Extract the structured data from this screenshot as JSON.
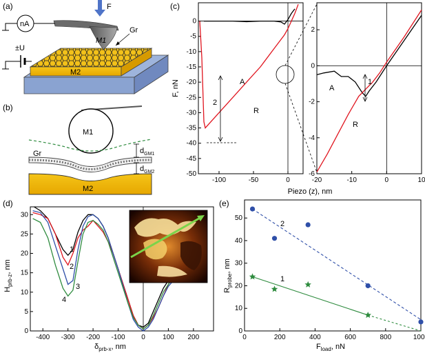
{
  "panels": {
    "a": {
      "label": "(a)",
      "force_label": "F",
      "ammeter_label": "nA",
      "tip_label": "M1",
      "graphene_label": "Gr",
      "voltage_label": "±U",
      "substrate_label": "M2"
    },
    "b": {
      "label": "(b)",
      "sphere_label": "M1",
      "graphene_label": "Gr",
      "bottom_label": "M2",
      "d1_main": "d",
      "d1_sub": "GM1",
      "d2_main": "d",
      "d2_sub": "GM2"
    },
    "c": {
      "label": "(c)",
      "ylabel": "F, nN",
      "xlabel": "Piezo (z), nm",
      "left_xticks": [
        "-100",
        "-50",
        "0"
      ],
      "left_yticks": [
        "0",
        "-5",
        "-10",
        "-15",
        "-20",
        "-25",
        "-30",
        "-35",
        "-40",
        "-45",
        "-50"
      ],
      "right_xticks": [
        "-20",
        "-10",
        "0",
        "10"
      ],
      "right_yticks": [
        "2",
        "0",
        "-2",
        "-4",
        "-6"
      ],
      "curve_A": "A",
      "curve_R": "R",
      "left_marker": "2",
      "right_marker": "1",
      "colors": {
        "approach": "#000000",
        "retract": "#e0141e"
      }
    },
    "d": {
      "label": "(d)",
      "ylabel_main": "H",
      "ylabel_sub": "prb-z",
      "ylabel_unit": ", nm",
      "xlabel_main": "δ",
      "xlabel_sub": "prb-x",
      "xlabel_unit": ", nm",
      "xticks": [
        "-400",
        "-300",
        "-200",
        "-100",
        "0",
        "100",
        "200"
      ],
      "yticks": [
        "30",
        "25",
        "20",
        "15",
        "10",
        "5",
        "0"
      ],
      "curve_labels": [
        "1",
        "2",
        "3",
        "4"
      ],
      "colors": [
        "#000000",
        "#e0141e",
        "#2f4fa8",
        "#2e8b3e"
      ]
    },
    "e": {
      "label": "(e)",
      "ylabel_main": "R",
      "ylabel_sub": "probe",
      "ylabel_unit": ", nm",
      "xlabel_main": "F",
      "xlabel_sub": "load",
      "xlabel_unit": ", nN",
      "xticks": [
        "0",
        "200",
        "400",
        "600",
        "800",
        "1000"
      ],
      "yticks": [
        "0",
        "10",
        "20",
        "30",
        "40",
        "50"
      ],
      "series_labels": [
        "2",
        "1"
      ]
    }
  },
  "chart_data": [
    {
      "id": "c-left",
      "type": "line",
      "xlabel": "Piezo (z), nm",
      "ylabel": "F, nN",
      "xlim": [
        -130,
        22
      ],
      "ylim": [
        -50,
        6
      ],
      "series": [
        {
          "name": "A",
          "color": "#000000",
          "x": [
            -122,
            -100,
            -80,
            -60,
            -40,
            -20,
            -10,
            -5,
            0,
            5,
            10
          ],
          "y": [
            0,
            0,
            0,
            -0.2,
            0,
            0,
            -0.3,
            -1,
            0.5,
            2.5,
            4
          ]
        },
        {
          "name": "R",
          "color": "#e0141e",
          "x": [
            -128,
            -125,
            -122,
            -120,
            -100,
            -80,
            -60,
            -40,
            -20,
            -5,
            0,
            5,
            10,
            15
          ],
          "y": [
            0,
            -12,
            -33,
            -35,
            -30,
            -25,
            -20,
            -15,
            -9,
            -4.5,
            -2.5,
            0,
            2.5,
            5.5
          ]
        }
      ]
    },
    {
      "id": "c-right",
      "type": "line",
      "xlim": [
        -20,
        10
      ],
      "ylim": [
        -6,
        3.5
      ],
      "series": [
        {
          "name": "A",
          "color": "#000000",
          "x": [
            -20,
            -18,
            -15,
            -13,
            -11,
            -9,
            -7,
            -6,
            -5,
            -3,
            0,
            5,
            10
          ],
          "y": [
            -0.5,
            -0.4,
            -0.3,
            -0.6,
            -0.6,
            -0.9,
            -1.5,
            -1.7,
            -1.4,
            -0.9,
            0,
            1.4,
            2.8
          ]
        },
        {
          "name": "R",
          "color": "#e0141e",
          "x": [
            -20,
            -17,
            -14,
            -11,
            -8,
            -6,
            -4,
            -2,
            0,
            5,
            10
          ],
          "y": [
            -5.9,
            -4.9,
            -3.8,
            -2.7,
            -1.7,
            -1.3,
            -0.9,
            -0.4,
            0.2,
            1.6,
            3.1
          ]
        }
      ]
    },
    {
      "id": "d",
      "type": "line",
      "xlabel": "δprb-x, nm",
      "ylabel": "Hprb-z, nm",
      "xlim": [
        -450,
        280
      ],
      "ylim": [
        0,
        32
      ],
      "series": [
        {
          "name": "1",
          "color": "#000000",
          "x": [
            -435,
            -410,
            -380,
            -350,
            -320,
            -300,
            -280,
            -260,
            -240,
            -220,
            -200,
            -180,
            -160,
            -140,
            -120,
            -100,
            -80,
            -60,
            -40,
            -20,
            0,
            20,
            40,
            60,
            80,
            100,
            120
          ],
          "y": [
            32,
            31,
            29,
            25,
            21,
            19.5,
            21,
            25.5,
            28.5,
            30,
            30,
            29,
            27,
            24,
            20,
            16,
            12,
            8,
            4,
            1.5,
            1,
            2,
            5,
            8,
            11,
            13,
            15
          ]
        },
        {
          "name": "2",
          "color": "#e0141e",
          "x": [
            -440,
            -410,
            -380,
            -350,
            -320,
            -300,
            -280,
            -260,
            -240,
            -220,
            -200,
            -180,
            -160,
            -140,
            -120,
            -100,
            -80,
            -60,
            -40,
            -20,
            0,
            20,
            40,
            60,
            80,
            100,
            120
          ],
          "y": [
            30.5,
            30,
            29,
            25,
            19,
            17,
            20,
            24,
            26,
            27,
            28.5,
            27,
            25.5,
            23,
            20,
            16,
            12,
            8,
            4,
            1.5,
            0.5,
            1.5,
            3.5,
            6,
            9,
            12,
            14
          ]
        },
        {
          "name": "3",
          "color": "#2f4fa8",
          "x": [
            -440,
            -410,
            -380,
            -350,
            -320,
            -300,
            -280,
            -260,
            -240,
            -220,
            -200,
            -180,
            -160,
            -140,
            -120,
            -100,
            -80,
            -60,
            -40,
            -20,
            0,
            20,
            40,
            60,
            80,
            100,
            120
          ],
          "y": [
            31,
            30.5,
            28,
            22,
            16,
            12,
            13,
            21,
            27,
            29.5,
            30,
            29,
            27,
            24,
            20,
            16,
            11.5,
            7,
            3,
            1,
            0,
            1,
            3,
            6,
            9,
            11.5,
            13
          ]
        },
        {
          "name": "4",
          "color": "#2e8b3e",
          "x": [
            -440,
            -410,
            -380,
            -350,
            -320,
            -300,
            -280,
            -260,
            -240,
            -220,
            -200,
            -180,
            -160,
            -140,
            -120,
            -100,
            -80,
            -60,
            -40,
            -20,
            0,
            20,
            40,
            60,
            80,
            100,
            120
          ],
          "y": [
            29,
            28,
            24,
            17,
            11,
            9,
            10.5,
            18,
            25,
            28,
            28.5,
            27.5,
            26,
            23,
            19,
            15,
            11,
            7,
            3.5,
            1.5,
            0.5,
            1.5,
            4,
            7,
            10,
            12,
            14
          ]
        }
      ]
    },
    {
      "id": "e",
      "type": "scatter",
      "xlabel": "Fload, nN",
      "ylabel": "Rprobe, nm",
      "xlim": [
        0,
        1000
      ],
      "ylim": [
        0,
        58
      ],
      "series": [
        {
          "name": "2",
          "marker": "circle",
          "color": "#2f4fa8",
          "x": [
            45,
            170,
            360,
            700,
            1000
          ],
          "y": [
            54,
            41,
            47,
            20,
            4
          ],
          "fit": {
            "x": [
              45,
              1000
            ],
            "y": [
              54,
              5
            ]
          }
        },
        {
          "name": "1",
          "marker": "star",
          "color": "#2e8b3e",
          "x": [
            45,
            170,
            360,
            700
          ],
          "y": [
            24,
            18.5,
            20.5,
            7
          ],
          "fit": {
            "x": [
              45,
              700
            ],
            "y": [
              24,
              7
            ]
          },
          "fit_extension": {
            "x": [
              700,
              1000
            ],
            "y": [
              7,
              0
            ]
          }
        }
      ]
    }
  ]
}
